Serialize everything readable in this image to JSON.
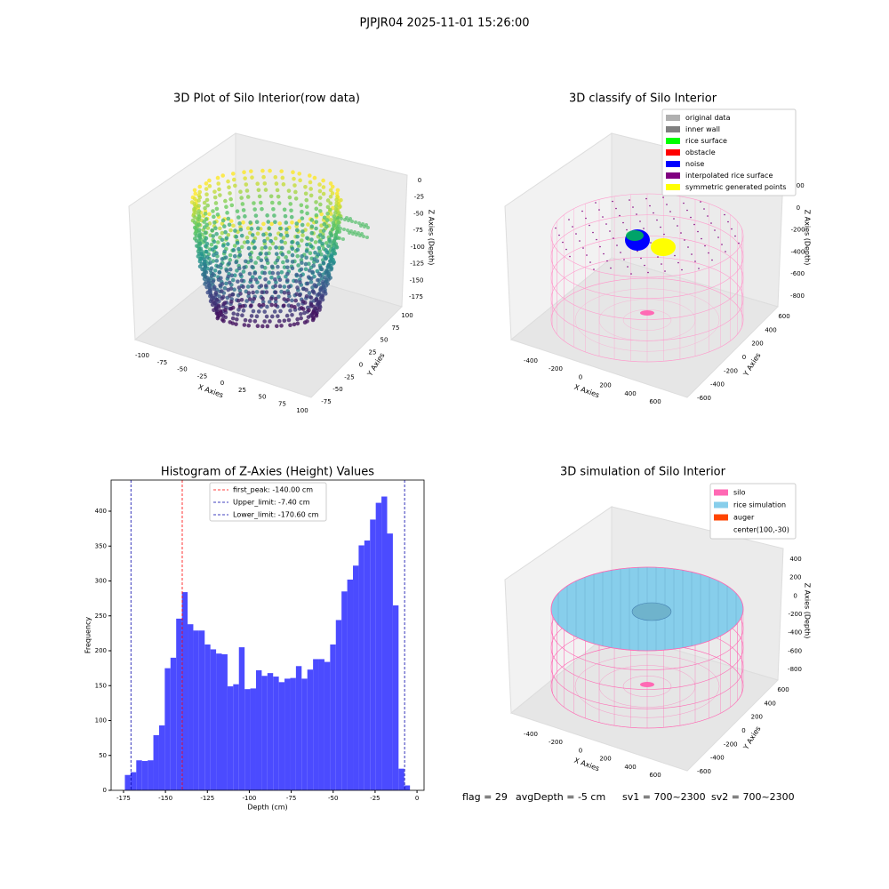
{
  "title": "PJPJR04 2025-11-01 15:26:00",
  "chart_data": [
    {
      "type": "scatter3d",
      "title": "3D Plot of Silo Interior(row data)",
      "xlabel": "X Axies",
      "ylabel": "Y Axies",
      "zlabel": "Z Axies (Depth)",
      "xticks": [
        -100,
        -75,
        -50,
        -25,
        0,
        25,
        50,
        75,
        100
      ],
      "yticks": [
        -75,
        -50,
        -25,
        0,
        25,
        50,
        75,
        100
      ],
      "zticks": [
        0,
        -25,
        -50,
        -75,
        -100,
        -125,
        -150,
        -175
      ]
    },
    {
      "type": "classify3d",
      "title": "3D classify of Silo Interior",
      "xlabel": "X Axies",
      "ylabel": "Y Axies",
      "zlabel": "Z Axies (Depth)",
      "xticks": [
        -400,
        -200,
        0,
        200,
        400,
        600
      ],
      "yticks": [
        -600,
        -400,
        -200,
        0,
        200,
        400,
        600
      ],
      "zticks": [
        200,
        0,
        -200,
        -400,
        -600,
        -800
      ],
      "legend": [
        {
          "name": "original data",
          "color": "#b0b0b0"
        },
        {
          "name": "inner wall",
          "color": "#808080"
        },
        {
          "name": "rice surface",
          "color": "#00ff00"
        },
        {
          "name": "obstacle",
          "color": "#ff0000"
        },
        {
          "name": "noise",
          "color": "#0000ff"
        },
        {
          "name": "interpolated rice surface",
          "color": "#800080"
        },
        {
          "name": "symmetric generated points",
          "color": "#ffff00"
        }
      ]
    },
    {
      "type": "histogram",
      "title": "Histogram of Z-Axies (Height) Values",
      "xlabel": "Depth (cm)",
      "ylabel": "Frequency",
      "color": "#4b4bff",
      "bins": [
        -174.2,
        -170.8,
        -167.4,
        -164.0,
        -160.6,
        -157.2,
        -153.8,
        -150.4,
        -147.0,
        -143.6,
        -140.2,
        -136.8,
        -133.4,
        -130.0,
        -126.6,
        -123.2,
        -119.8,
        -116.4,
        -113.0,
        -109.6,
        -106.2,
        -102.8,
        -99.4,
        -96.0,
        -92.6,
        -89.2,
        -85.8,
        -82.4,
        -79.0,
        -75.6,
        -72.2,
        -68.8,
        -65.4,
        -62.0,
        -58.6,
        -55.2,
        -51.8,
        -48.4,
        -45.0,
        -41.6,
        -38.2,
        -34.8,
        -31.4,
        -28.0,
        -24.6,
        -21.2,
        -17.8,
        -14.4,
        -11.0,
        -7.6,
        -4.2
      ],
      "values": [
        22,
        26,
        43,
        42,
        43,
        79,
        93,
        175,
        190,
        246,
        284,
        238,
        229,
        229,
        209,
        202,
        196,
        195,
        149,
        152,
        205,
        145,
        146,
        172,
        164,
        168,
        163,
        155,
        160,
        161,
        178,
        160,
        173,
        188,
        188,
        184,
        209,
        244,
        285,
        302,
        322,
        351,
        358,
        388,
        412,
        421,
        368,
        265,
        31,
        7
      ],
      "xlim": [
        -182.4,
        4.2
      ],
      "ylim": [
        0,
        444.6
      ],
      "xticks": [
        -175,
        -150,
        -125,
        -100,
        -75,
        -50,
        -25,
        0
      ],
      "yticks": [
        0,
        50,
        100,
        150,
        200,
        250,
        300,
        350,
        400
      ],
      "vlines": [
        {
          "label": "first_peak: -140.00 cm",
          "value": -140,
          "color": "#ff0000"
        },
        {
          "label": "Upper_limit: -7.40 cm",
          "value": -7.4,
          "color": "#0000aa"
        },
        {
          "label": "Lower_limit: -170.60 cm",
          "value": -170.6,
          "color": "#0000aa"
        }
      ]
    },
    {
      "type": "surface3d",
      "title": "3D simulation of Silo Interior",
      "xlabel": "X Axies",
      "ylabel": "Y Axies",
      "zlabel": "Z Axies (Depth)",
      "xticks": [
        -400,
        -200,
        0,
        200,
        400,
        600
      ],
      "yticks": [
        -600,
        -400,
        -200,
        0,
        200,
        400,
        600
      ],
      "zticks": [
        400,
        200,
        0,
        -200,
        -400,
        -600,
        -800
      ],
      "legend": [
        {
          "name": "silo",
          "color": "#ff69b4"
        },
        {
          "name": "rice simulation",
          "color": "#87ceeb"
        },
        {
          "name": "auger",
          "color": "#ff4500"
        },
        {
          "name": "center(100,-30)"
        }
      ]
    }
  ],
  "status": [
    "flag = 29",
    "avgDepth = -5 cm",
    "sv1 = 700~2300",
    "sv2 = 700~2300"
  ]
}
